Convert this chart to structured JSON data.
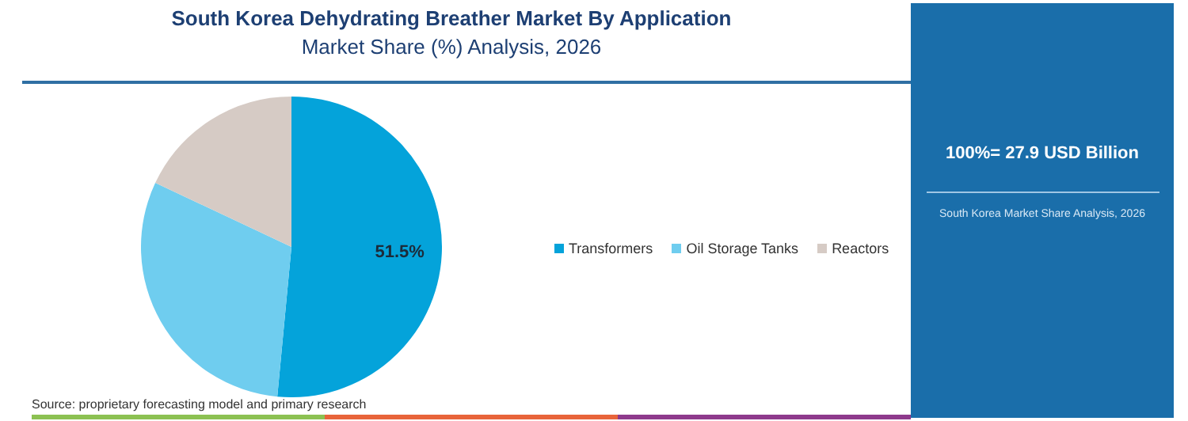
{
  "chart_data": {
    "type": "pie",
    "title": "South Korea Dehydrating Breather Market By Application",
    "subtitle": "Market Share (%) Analysis, 2026",
    "categories": [
      "Transformers",
      "Oil Storage Tanks",
      "Reactors"
    ],
    "values": [
      51.5,
      30.5,
      18.0
    ],
    "colors": [
      "#04a3da",
      "#6fcdef",
      "#d6cbc5"
    ],
    "value_labels": [
      "51.5%",
      null,
      null
    ],
    "legend": "right",
    "annotations": [
      "100%= 27.9 USD Billion",
      "South Korea Market Share Analysis, 2026",
      "Source: proprietary forecasting model and primary research"
    ]
  }
}
